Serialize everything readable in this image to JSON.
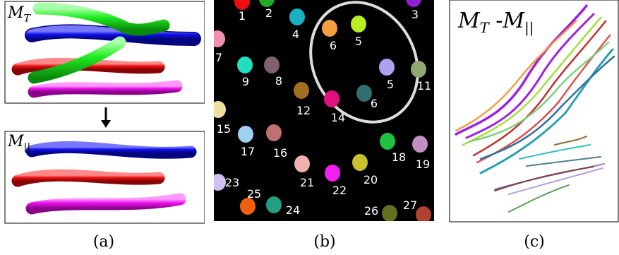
{
  "panel_a": {
    "top_label": "M",
    "top_label_sub": "T",
    "bottom_label": "M",
    "bottom_label_sub": "||",
    "tube_colors": {
      "green": "#22ee22",
      "blue": "#1010ee",
      "red": "#ee1010",
      "magenta": "#ee10ee"
    }
  },
  "panel_b": {
    "blob_labels": [
      "1",
      "2",
      "3",
      "4",
      "5",
      "6",
      "7",
      "8",
      "9",
      "5",
      "6",
      "11",
      "12",
      "14",
      "15",
      "16",
      "17",
      "18",
      "19",
      "20",
      "21",
      "22",
      "23",
      "24",
      "25",
      "26",
      "27"
    ]
  },
  "panel_c": {
    "label_left": "M",
    "label_left_sub": "T",
    "label_op": " -",
    "label_right": "M",
    "label_right_sub": "||"
  },
  "captions": {
    "a": "(a)",
    "b": "(b)",
    "c": "(c)"
  }
}
